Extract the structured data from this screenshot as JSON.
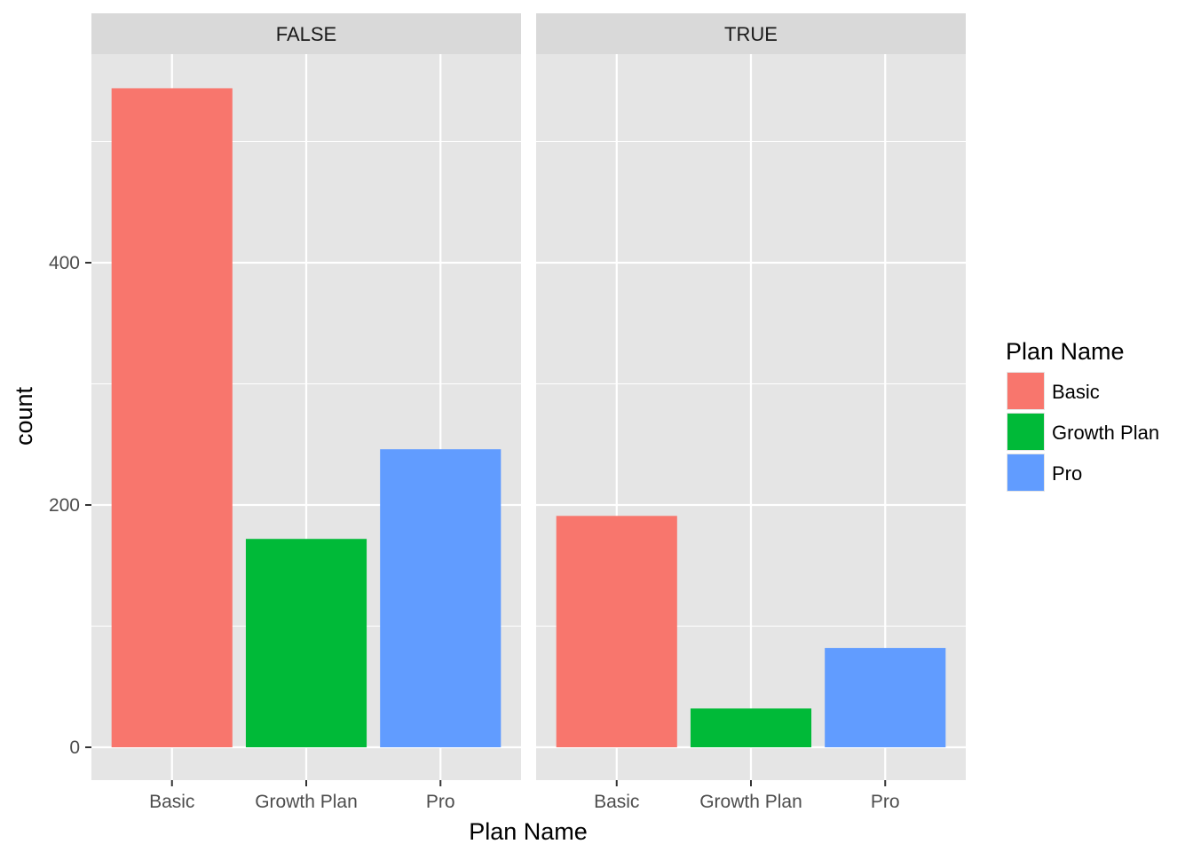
{
  "chart_data": {
    "type": "bar",
    "facet_variable_values": [
      "FALSE",
      "TRUE"
    ],
    "categories": [
      "Basic",
      "Growth Plan",
      "Pro"
    ],
    "facets": [
      {
        "label": "FALSE",
        "values": [
          544,
          172,
          246
        ]
      },
      {
        "label": "TRUE",
        "values": [
          191,
          32,
          82
        ]
      }
    ],
    "xlabel": "Plan Name",
    "ylabel": "count",
    "ylim": [
      -25,
      576
    ],
    "yticks": [
      0,
      200,
      400
    ],
    "grid": true,
    "legend": {
      "title": "Plan Name",
      "placement": "right",
      "entries": [
        "Basic",
        "Growth Plan",
        "Pro"
      ]
    },
    "colors": {
      "Basic": "#F8766D",
      "Growth Plan": "#00BA38",
      "Pro": "#619CFF",
      "panel_bg": "#E5E5E5",
      "strip_bg": "#D9D9D9",
      "grid": "#FFFFFF"
    }
  }
}
